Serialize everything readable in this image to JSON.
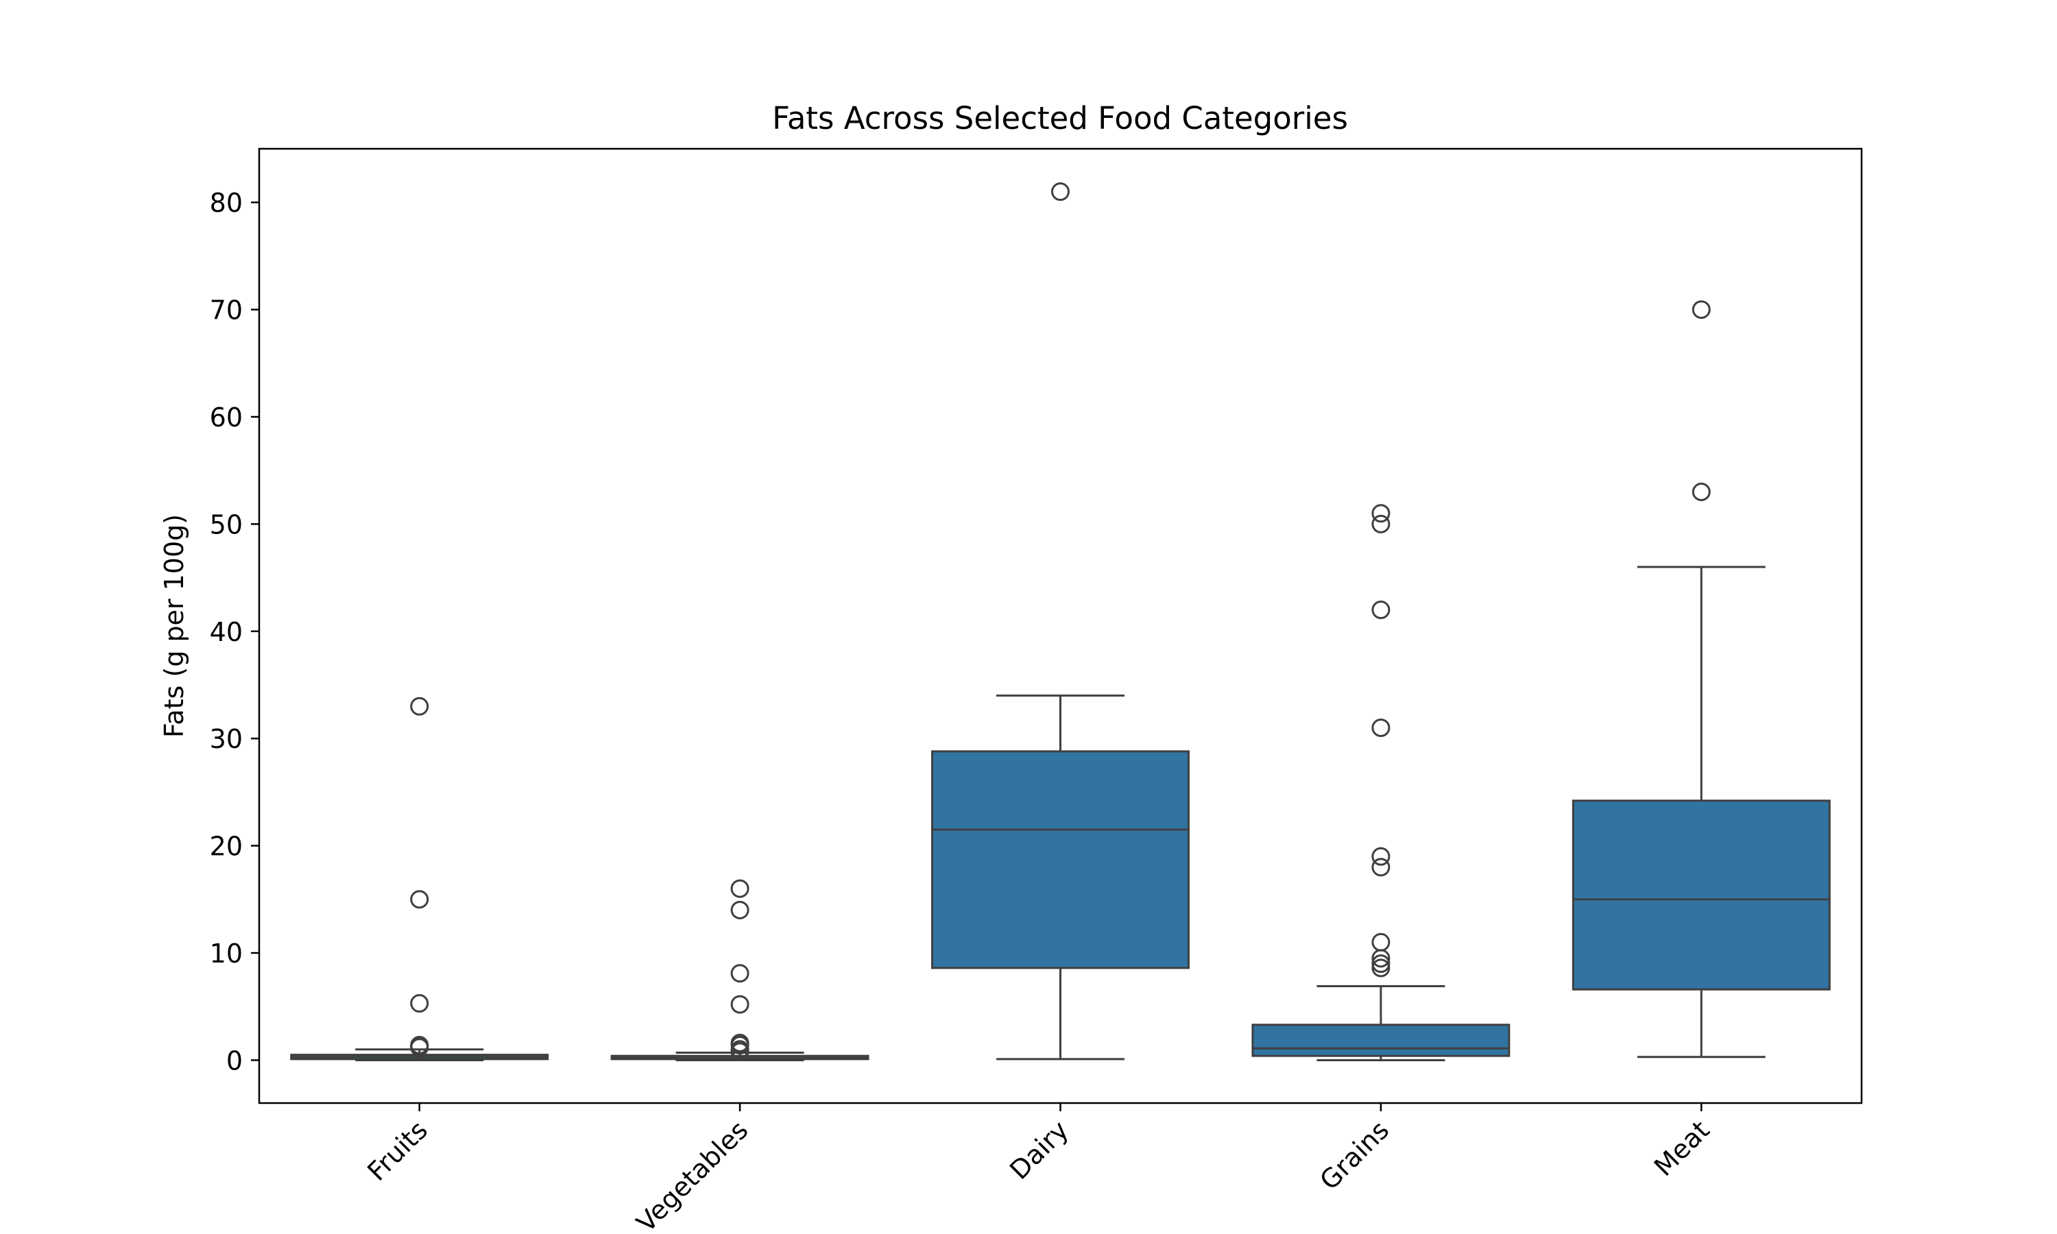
{
  "chart_data": {
    "type": "box",
    "title": "Fats Across Selected Food Categories",
    "xlabel": "",
    "ylabel": "Fats (g per 100g)",
    "ylim": [
      -4,
      85
    ],
    "yticks": [
      0,
      10,
      20,
      30,
      40,
      50,
      60,
      70,
      80
    ],
    "ytick_labels": [
      "0",
      "10",
      "20",
      "30",
      "40",
      "50",
      "60",
      "70",
      "80"
    ],
    "box_color": "#3274a1",
    "line_color": "#3f3f3f",
    "grid": false,
    "legend": "none",
    "categories": [
      "Fruits",
      "Vegetables",
      "Dairy",
      "Grains",
      "Meat"
    ],
    "boxes": [
      {
        "category": "Fruits",
        "whisker_low": 0.0,
        "q1": 0.1,
        "median": 0.3,
        "q3": 0.5,
        "whisker_high": 1.0,
        "outliers": [
          33,
          15,
          5.3,
          1.4,
          1.3,
          1.2
        ]
      },
      {
        "category": "Vegetables",
        "whisker_low": 0.0,
        "q1": 0.1,
        "median": 0.2,
        "q3": 0.4,
        "whisker_high": 0.7,
        "outliers": [
          16,
          14,
          8.1,
          5.2,
          1.6,
          1.4,
          1.0,
          0.8
        ]
      },
      {
        "category": "Dairy",
        "whisker_low": 0.1,
        "q1": 8.6,
        "median": 21.5,
        "q3": 28.8,
        "whisker_high": 34,
        "outliers": [
          81
        ]
      },
      {
        "category": "Grains",
        "whisker_low": 0.0,
        "q1": 0.4,
        "median": 1.1,
        "q3": 3.3,
        "whisker_high": 6.9,
        "outliers": [
          51,
          50,
          42,
          31,
          19,
          18,
          11,
          9.5,
          9.0,
          8.6
        ]
      },
      {
        "category": "Meat",
        "whisker_low": 0.3,
        "q1": 6.6,
        "median": 15,
        "q3": 24.2,
        "whisker_high": 46,
        "outliers": [
          70,
          53
        ]
      }
    ]
  }
}
